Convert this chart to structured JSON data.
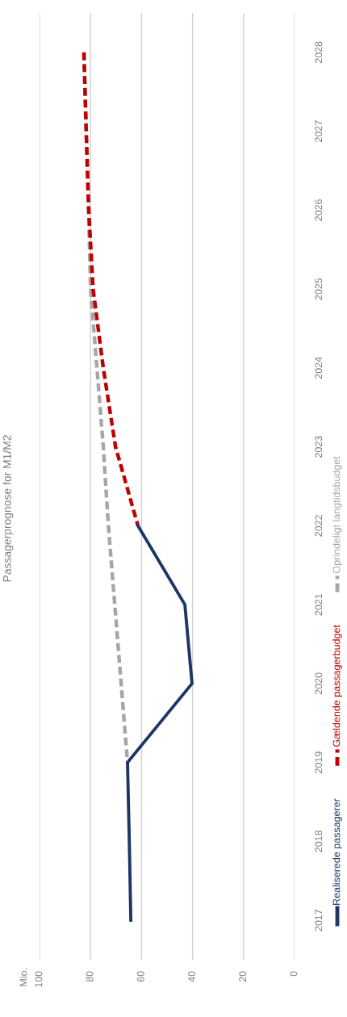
{
  "chart_data": {
    "type": "line",
    "orientation": "horizontal",
    "title": "Passagerprognose for M1/M2",
    "annotations": [
      "Mio."
    ],
    "xlim": [
      100,
      0
    ],
    "xticks": [
      0,
      20,
      40,
      60,
      80,
      100
    ],
    "categories": [
      "2028",
      "2027",
      "2026",
      "2025",
      "2024",
      "2023",
      "2022",
      "2021",
      "2020",
      "2019",
      "2018",
      "2017"
    ],
    "grid": "x",
    "legend": "right",
    "series": [
      {
        "name": "Realiserede passagerer",
        "color": "#1f3566",
        "line_style": "solid",
        "values": [
          null,
          null,
          null,
          null,
          null,
          null,
          61.4,
          43,
          40.2,
          65.5,
          64.8,
          64.2
        ]
      },
      {
        "name": "Gældende passagerbudget",
        "color": "#c00000",
        "line_style": "dashed",
        "values": [
          82.6,
          81.7,
          80.7,
          79,
          75,
          70.2,
          61.4,
          null,
          null,
          null,
          null,
          null
        ]
      },
      {
        "name": "Oprindeligt langtidsbudget",
        "color": "#a6a6a6",
        "line_style": "dashed",
        "values": [
          82.6,
          81.7,
          80.8,
          80,
          77.5,
          75,
          73,
          70.5,
          68,
          65.5,
          null,
          null
        ]
      }
    ]
  }
}
